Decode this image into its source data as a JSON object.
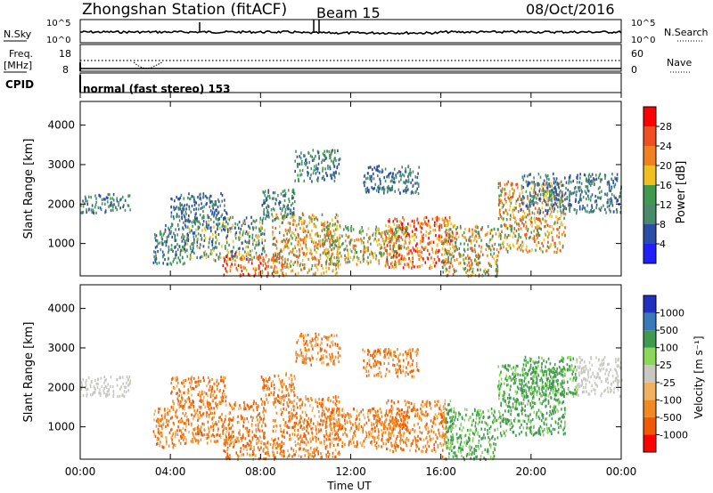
{
  "header": {
    "station": "Zhongshan Station (fitACF)",
    "beam": "Beam 15",
    "date": "08/Oct/2016"
  },
  "status_panels": {
    "nsky_label": "N.Sky",
    "nsky_ticks": [
      "10^5",
      "10^0"
    ],
    "nsearch_label": "N.Search",
    "nsearch_ticks": [
      "10^5",
      "10^0"
    ],
    "freq_label": "Freq.",
    "freq_unit": "[MHz]",
    "freq_ticks": [
      "18",
      "8"
    ],
    "nave_label": "Nave",
    "nave_ticks": [
      "60",
      "0"
    ],
    "cpid_label": "CPID",
    "cpid_text": "normal (fast stereo) 153"
  },
  "colors": {
    "power_scale": [
      "#2020ff",
      "#2a4ea8",
      "#4a8a6a",
      "#3f9a4f",
      "#f0c020",
      "#f08020",
      "#f05020",
      "#ff0000"
    ],
    "velocity_scale": [
      "#ff0000",
      "#f05a00",
      "#f08a20",
      "#f0b060",
      "#c8c8c0",
      "#8ad858",
      "#3f9a4f",
      "#3a7ab8",
      "#2030c0"
    ]
  },
  "chart_data": [
    {
      "type": "heatmap",
      "panel": "power",
      "ylabel": "Slant Range [km]",
      "yticks": [
        1000,
        2000,
        3000,
        4000
      ],
      "ylim": [
        180,
        4600
      ],
      "xlabel": "Time UT",
      "xticks": [
        "00:00",
        "04:00",
        "08:00",
        "12:00",
        "16:00",
        "20:00",
        "00:00"
      ],
      "xlim_hours": [
        0,
        24
      ],
      "colorbar_label": "Power [dB]",
      "colorbar_ticks": [
        "4",
        "8",
        "12",
        "16",
        "20",
        "24",
        "28"
      ],
      "colorbar_range": [
        0,
        32
      ]
    },
    {
      "type": "heatmap",
      "panel": "velocity",
      "ylabel": "Slant Range [km]",
      "yticks": [
        1000,
        2000,
        3000,
        4000
      ],
      "ylim": [
        180,
        4600
      ],
      "xlabel": "Time UT",
      "xticks": [
        "00:00",
        "04:00",
        "08:00",
        "12:00",
        "16:00",
        "20:00",
        "00:00"
      ],
      "xlim_hours": [
        0,
        24
      ],
      "colorbar_label": "Velocity [m s⁻¹]",
      "colorbar_ticks": [
        "1000",
        "500",
        "100",
        "25",
        "-25",
        "-100",
        "-500",
        "-1000"
      ]
    }
  ],
  "xlabel": "Time UT"
}
